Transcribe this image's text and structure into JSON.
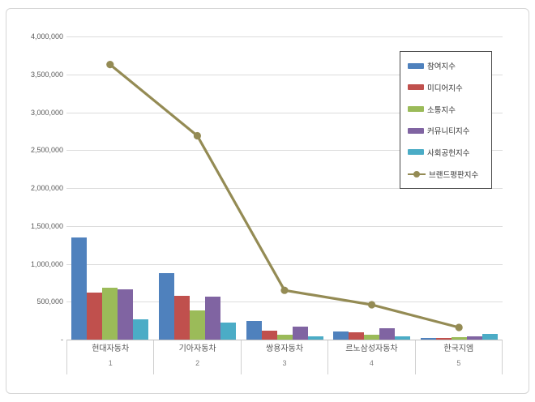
{
  "chart_data": {
    "type": "bar+line",
    "title": "",
    "xlabel": "",
    "ylabel": "",
    "grid": true,
    "legend_position": "top-right",
    "categories": [
      {
        "name": "현대자동차",
        "rank": "1"
      },
      {
        "name": "기아자동차",
        "rank": "2"
      },
      {
        "name": "쌍용자동차",
        "rank": "3"
      },
      {
        "name": "르노삼성자동차",
        "rank": "4"
      },
      {
        "name": "한국지엠",
        "rank": "5"
      }
    ],
    "bar_series": [
      {
        "name": "참여지수",
        "color": "#4F81BD",
        "values": [
          1350000,
          880000,
          250000,
          110000,
          20000
        ]
      },
      {
        "name": "미디어지수",
        "color": "#C0504D",
        "values": [
          620000,
          580000,
          120000,
          100000,
          22000
        ]
      },
      {
        "name": "소통지수",
        "color": "#9BBB59",
        "values": [
          690000,
          390000,
          70000,
          60000,
          35000
        ]
      },
      {
        "name": "커뮤니티지수",
        "color": "#8064A2",
        "values": [
          660000,
          570000,
          170000,
          150000,
          45000
        ]
      },
      {
        "name": "사회공헌지수",
        "color": "#4BACC6",
        "values": [
          270000,
          230000,
          40000,
          45000,
          80000
        ]
      }
    ],
    "line_series": {
      "name": "브랜드평판지수",
      "color": "#948B54",
      "values": [
        3630000,
        2690000,
        650000,
        460000,
        160000
      ]
    },
    "y_axis": {
      "min": 0,
      "max": 4000000,
      "tick_step": 500000,
      "tick_labels": [
        "4,000,000",
        "3,500,000",
        "3,000,000",
        "2,500,000",
        "2,000,000",
        "1,500,000",
        "1,000,000",
        "500,000",
        "-"
      ]
    },
    "colors": {
      "gridline": "#dcdcdc",
      "axis_line": "#c0c0c0",
      "figure_border": "#d6d6d6",
      "legend_border": "#4a4a4a"
    }
  }
}
